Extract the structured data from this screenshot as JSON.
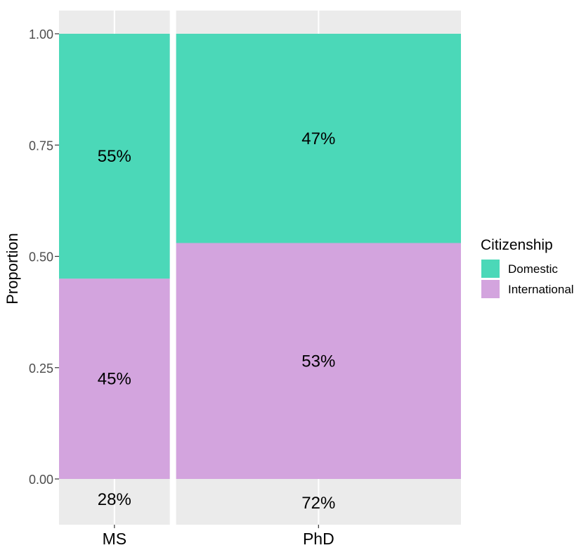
{
  "chart_data": {
    "type": "bar",
    "title": "",
    "xlabel": "",
    "ylabel": "Proportion",
    "ylim": [
      0,
      1
    ],
    "yticks": [
      0,
      0.25,
      0.5,
      0.75,
      1.0
    ],
    "ytick_labels": [
      "0.00",
      "0.25",
      "0.50",
      "0.75",
      "1.00"
    ],
    "grid": true,
    "stacked": true,
    "variable_width": true,
    "categories": [
      "MS",
      "PhD"
    ],
    "width_shares": [
      0.28,
      0.72
    ],
    "width_labels": [
      "28%",
      "72%"
    ],
    "series": [
      {
        "name": "International",
        "values": [
          0.45,
          0.53
        ],
        "labels": [
          "45%",
          "53%"
        ],
        "color": "#D3A4DE"
      },
      {
        "name": "Domestic",
        "values": [
          0.55,
          0.47
        ],
        "labels": [
          "55%",
          "47%"
        ],
        "color": "#4BD8B8"
      }
    ],
    "legend": {
      "title": "Citizenship",
      "placement": "right",
      "entries": [
        {
          "label": "Domestic",
          "color": "#4BD8B8"
        },
        {
          "label": "International",
          "color": "#D3A4DE"
        }
      ]
    },
    "colors": {
      "panel": "#EBEBEB",
      "gridline": "#FFFFFF",
      "tick_text": "#4D4D4D",
      "label_text": "#000000"
    }
  }
}
